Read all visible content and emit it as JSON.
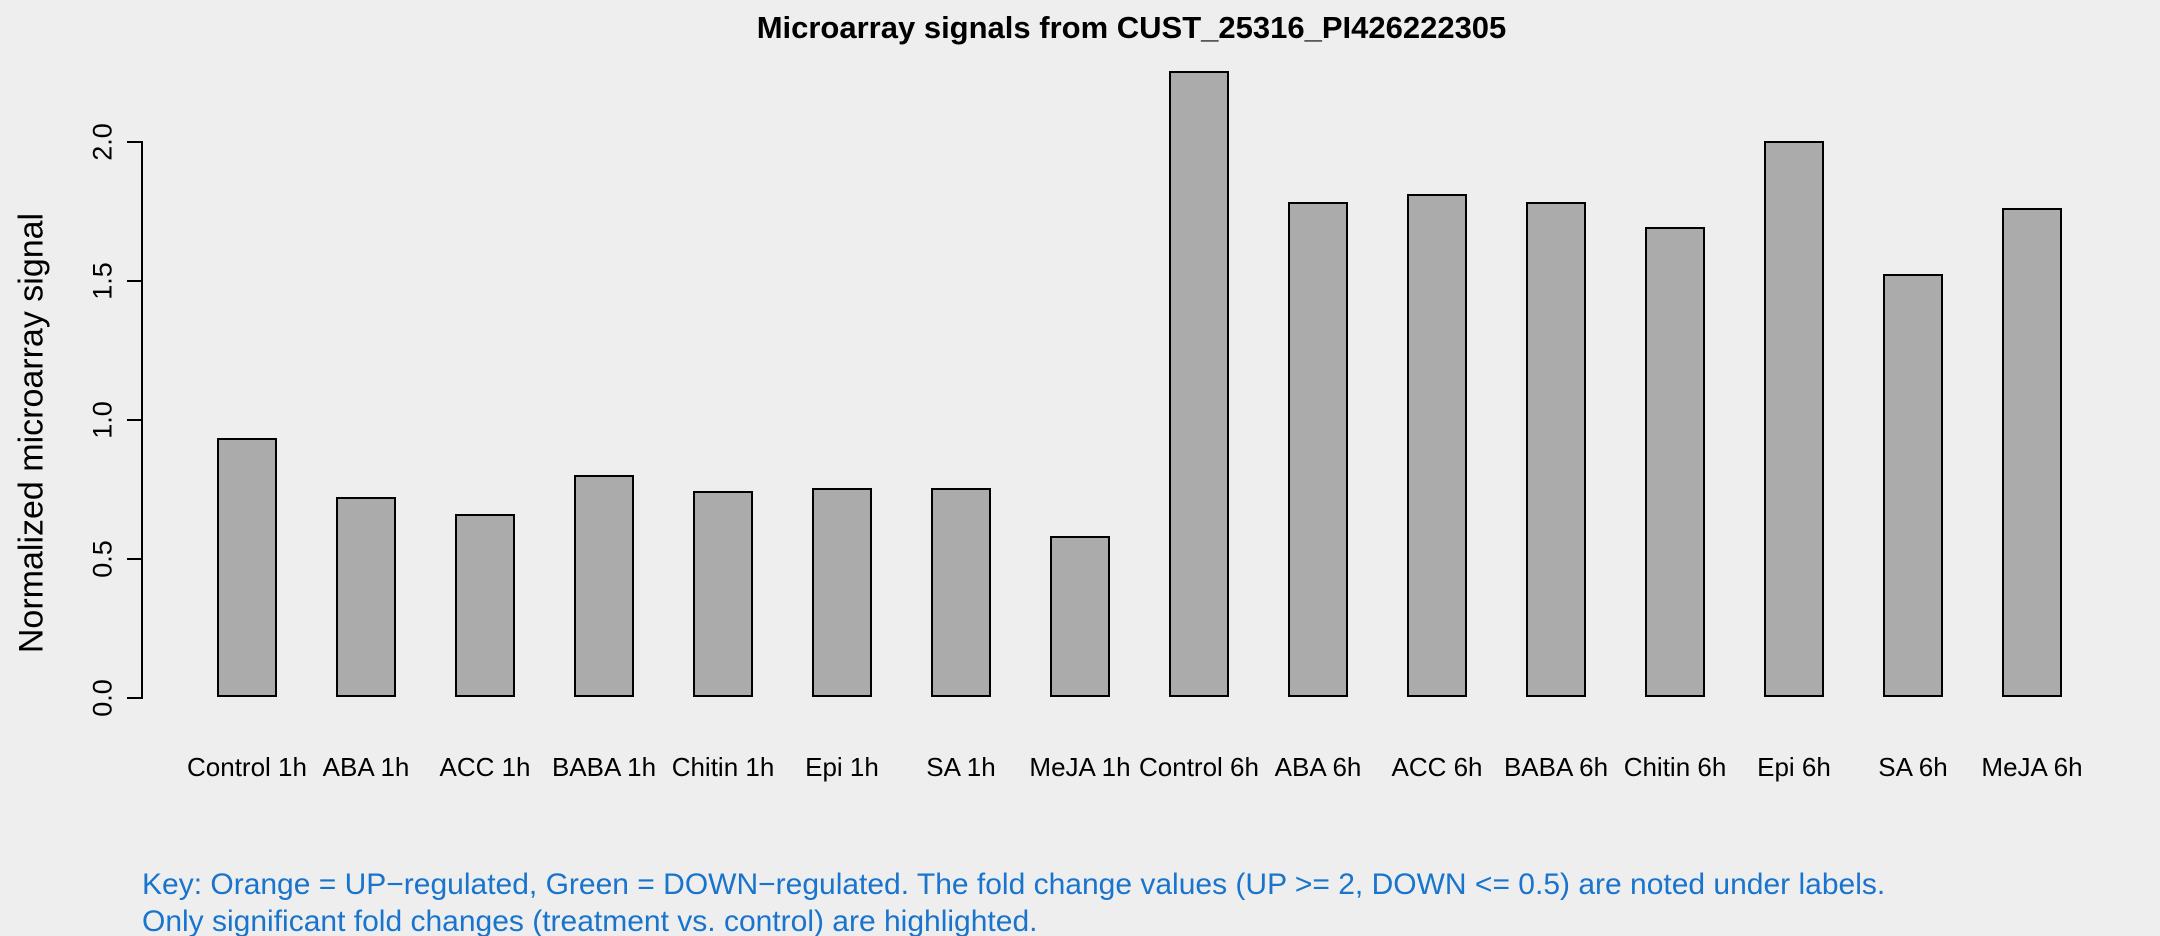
{
  "chart_data": {
    "type": "bar",
    "title": "Microarray signals from CUST_25316_PI426222305",
    "xlabel": "",
    "ylabel": "Normalized microarray signal",
    "ylim": [
      0,
      2.25
    ],
    "yticks": [
      "0.0",
      "0.5",
      "1.0",
      "1.5",
      "2.0"
    ],
    "grid": false,
    "legend": "none",
    "categories": [
      "Control 1h",
      "ABA 1h",
      "ACC 1h",
      "BABA 1h",
      "Chitin 1h",
      "Epi 1h",
      "SA 1h",
      "MeJA 1h",
      "Control 6h",
      "ABA 6h",
      "ACC 6h",
      "BABA 6h",
      "Chitin 6h",
      "Epi 6h",
      "SA 6h",
      "MeJA 6h"
    ],
    "values": [
      0.93,
      0.72,
      0.66,
      0.8,
      0.74,
      0.75,
      0.75,
      0.58,
      2.25,
      1.78,
      1.81,
      1.78,
      1.69,
      2.0,
      1.52,
      1.76
    ],
    "bar_color": "#ABABAB",
    "bar_border_color": "#000000"
  },
  "footnote": {
    "line1": "Key: Orange = UP−regulated, Green = DOWN−regulated. The fold change values (UP >= 2, DOWN <= 0.5) are noted under labels.",
    "line2": "Only significant fold changes (treatment vs. control) are highlighted.",
    "color": "#1874CD"
  },
  "colors": {
    "background": "#EEEEEE",
    "axis": "#000000",
    "text": "#000000"
  }
}
